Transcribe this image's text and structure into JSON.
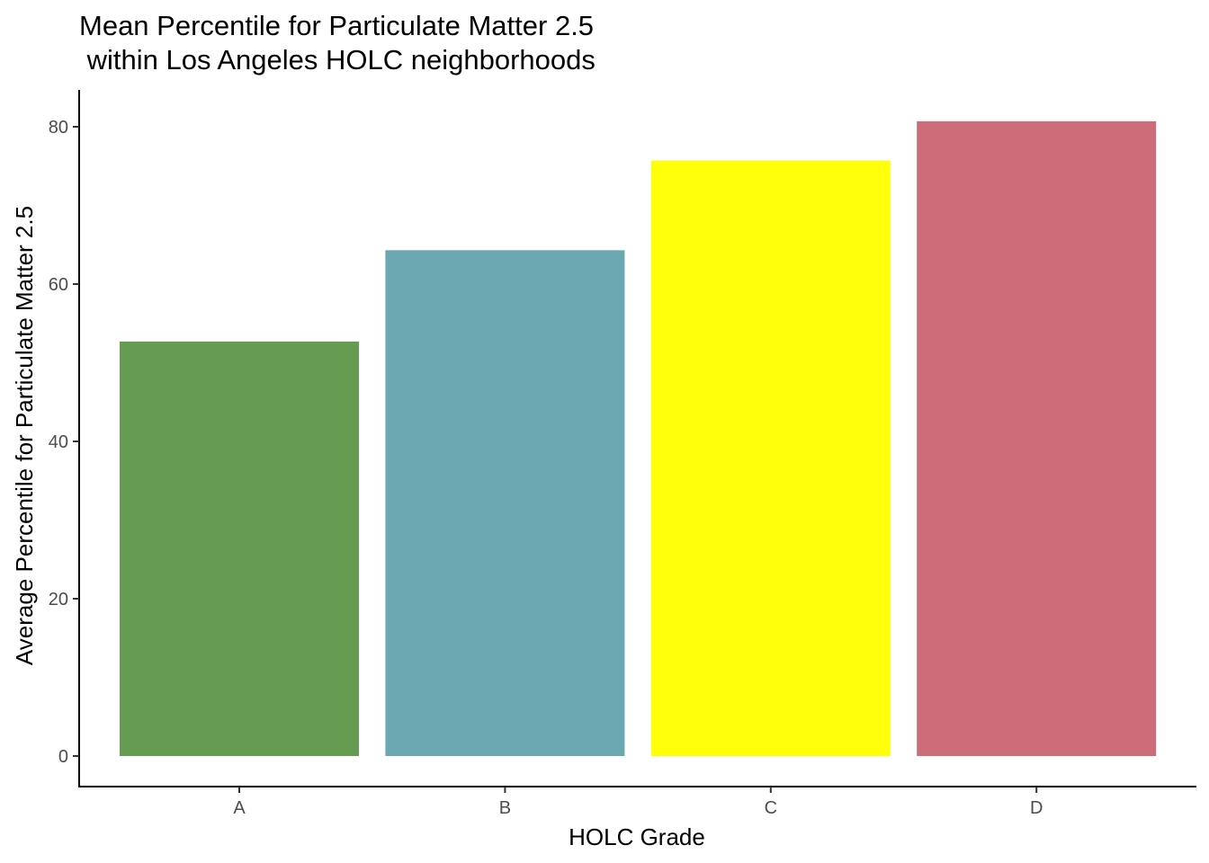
{
  "chart_data": {
    "type": "bar",
    "title_lines": [
      "Mean Percentile for Particulate Matter 2.5",
      " within Los Angeles HOLC neighborhoods"
    ],
    "xlabel": "HOLC Grade",
    "ylabel": "Average Percentile for Particulate Matter 2.5",
    "categories": [
      "A",
      "B",
      "C",
      "D"
    ],
    "values": [
      52.7,
      64.3,
      75.7,
      80.7
    ],
    "colors": [
      "#669B52",
      "#6BA7B0",
      "#FFFF0A",
      "#CC6D79"
    ],
    "ylim": [
      0,
      84.9
    ],
    "yticks": [
      0,
      20,
      40,
      60,
      80
    ],
    "grid": false,
    "legend": "none"
  }
}
